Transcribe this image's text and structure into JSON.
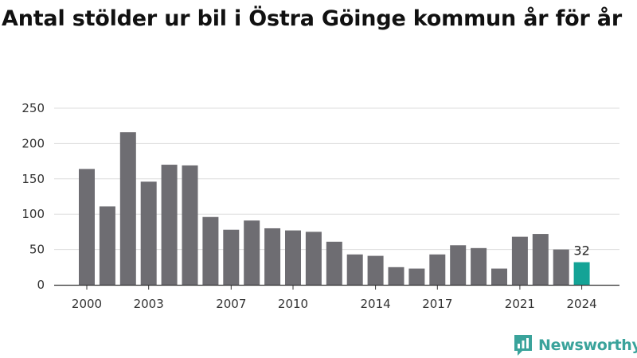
{
  "chart_data": {
    "type": "bar",
    "title": "Antal stölder ur bil i Östra Göinge kommun år för år",
    "xlabel": "",
    "ylabel": "",
    "ylim": [
      0,
      250
    ],
    "yticks": [
      0,
      50,
      100,
      150,
      200,
      250
    ],
    "xticks": [
      2000,
      2003,
      2007,
      2010,
      2014,
      2017,
      2021,
      2024
    ],
    "grid": true,
    "categories": [
      2000,
      2001,
      2002,
      2003,
      2004,
      2005,
      2006,
      2007,
      2008,
      2009,
      2010,
      2011,
      2012,
      2013,
      2014,
      2015,
      2016,
      2017,
      2018,
      2019,
      2020,
      2021,
      2022,
      2023,
      2024
    ],
    "values": [
      164,
      111,
      216,
      146,
      170,
      169,
      96,
      78,
      91,
      80,
      77,
      75,
      61,
      43,
      41,
      25,
      23,
      43,
      56,
      52,
      23,
      68,
      72,
      50,
      32
    ],
    "highlight_index": 24,
    "highlight_label": "32",
    "colors": {
      "bar": "#6e6d72",
      "highlight": "#14a396",
      "grid": "#dddddd",
      "axis": "#333333"
    }
  },
  "brand": {
    "name": "Newsworthy",
    "icon": "newsworthy-logo-icon",
    "color": "#3aa39b"
  }
}
